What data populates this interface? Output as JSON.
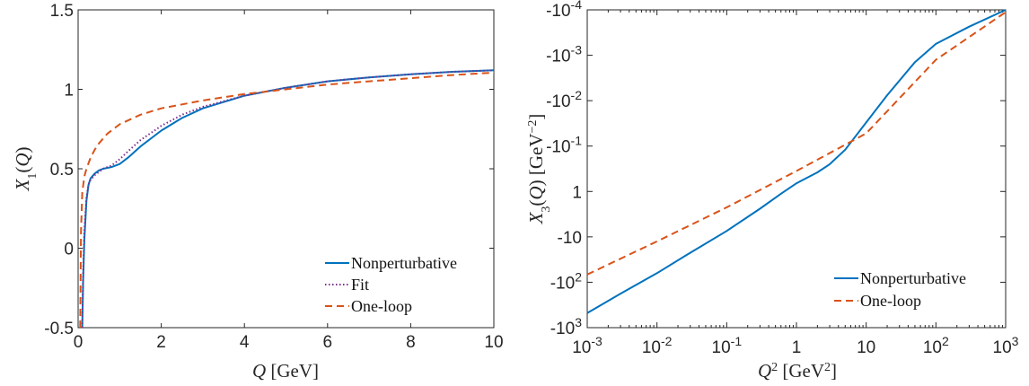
{
  "chart_data": [
    {
      "type": "line",
      "xlabel": "Q [GeV]",
      "ylabel": "X1(Q)",
      "xlim": [
        0,
        10
      ],
      "ylim": [
        -0.5,
        1.5
      ],
      "xticks": [
        0,
        2,
        4,
        6,
        8,
        10
      ],
      "yticks": [
        -0.5,
        0,
        0.5,
        1,
        1.5
      ],
      "xtick_labels": [
        "0",
        "2",
        "4",
        "6",
        "8",
        "10"
      ],
      "ytick_labels": [
        "-0.5",
        "0",
        "0.5",
        "1",
        "1.5"
      ],
      "grid": false,
      "legend_position": "bottom-right",
      "series": [
        {
          "name": "Nonperturbative",
          "color": "#0072BD",
          "style": "solid",
          "x": [
            0.1,
            0.12,
            0.15,
            0.2,
            0.25,
            0.3,
            0.4,
            0.5,
            0.6,
            0.8,
            1.0,
            1.2,
            1.5,
            2.0,
            2.5,
            3.0,
            4.0,
            5.0,
            6.0,
            7.0,
            8.0,
            9.0,
            10.0
          ],
          "y": [
            -0.5,
            -0.2,
            0.05,
            0.3,
            0.4,
            0.44,
            0.47,
            0.49,
            0.5,
            0.51,
            0.53,
            0.57,
            0.64,
            0.74,
            0.82,
            0.88,
            0.96,
            1.01,
            1.05,
            1.075,
            1.095,
            1.11,
            1.12
          ]
        },
        {
          "name": "Fit",
          "color": "#7E2F8E",
          "style": "dotted",
          "x": [
            0.1,
            0.12,
            0.15,
            0.2,
            0.25,
            0.3,
            0.4,
            0.5,
            0.6,
            0.8,
            1.0,
            1.2,
            1.5,
            2.0,
            2.5,
            3.0,
            4.0,
            5.0,
            6.0,
            7.0,
            8.0,
            9.0,
            10.0
          ],
          "y": [
            -0.5,
            -0.15,
            0.1,
            0.32,
            0.4,
            0.43,
            0.46,
            0.48,
            0.5,
            0.52,
            0.56,
            0.61,
            0.68,
            0.77,
            0.84,
            0.89,
            0.96,
            1.01,
            1.05,
            1.075,
            1.095,
            1.11,
            1.12
          ]
        },
        {
          "name": "One-loop",
          "color": "#D95319",
          "style": "dashed",
          "x": [
            0.05,
            0.07,
            0.1,
            0.15,
            0.2,
            0.3,
            0.4,
            0.5,
            0.7,
            1.0,
            1.5,
            2.0,
            3.0,
            4.0,
            5.0,
            6.0,
            7.0,
            8.0,
            9.0,
            10.0
          ],
          "y": [
            -0.5,
            0.1,
            0.35,
            0.45,
            0.5,
            0.57,
            0.62,
            0.66,
            0.72,
            0.78,
            0.84,
            0.88,
            0.93,
            0.97,
            1.0,
            1.03,
            1.05,
            1.07,
            1.09,
            1.105
          ]
        }
      ]
    },
    {
      "type": "line",
      "xlabel": "Q2 [GeV2]",
      "ylabel": "X3(Q) [GeV−2]",
      "xscale": "log",
      "yscale": "symlog",
      "xlim": [
        0.001,
        1000
      ],
      "ylim_exponent_range": [
        -4,
        3
      ],
      "xticks": [
        0.001,
        0.01,
        0.1,
        1,
        10,
        100,
        1000
      ],
      "xtick_labels": [
        {
          "base": "10",
          "exp": "-3"
        },
        {
          "base": "10",
          "exp": "-2"
        },
        {
          "base": "10",
          "exp": "-1"
        },
        {
          "base": "1",
          "exp": ""
        },
        {
          "base": "10",
          "exp": ""
        },
        {
          "base": "10",
          "exp": "2"
        },
        {
          "base": "10",
          "exp": "3"
        }
      ],
      "ytick_labels": [
        {
          "base": "-10",
          "exp": "-4"
        },
        {
          "base": "-10",
          "exp": "-3"
        },
        {
          "base": "-10",
          "exp": "-2"
        },
        {
          "base": "-10",
          "exp": "-1"
        },
        {
          "base": "1",
          "exp": ""
        },
        {
          "base": "-10",
          "exp": ""
        },
        {
          "base": "-10",
          "exp": "2"
        },
        {
          "base": "-10",
          "exp": "3"
        }
      ],
      "grid": false,
      "legend_position": "bottom-right",
      "series": [
        {
          "name": "Nonperturbative",
          "color": "#0072BD",
          "style": "solid",
          "x": [
            0.001,
            0.003,
            0.01,
            0.03,
            0.1,
            0.3,
            0.6,
            1.0,
            2.0,
            3.0,
            5.0,
            10.0,
            20.0,
            50.0,
            100.0,
            300.0,
            1000.0
          ],
          "log10_abs_y": [
            2.68,
            2.25,
            1.8,
            1.35,
            0.87,
            0.38,
            0.05,
            -0.18,
            -0.42,
            -0.6,
            -0.92,
            -1.52,
            -2.12,
            -2.85,
            -3.25,
            -3.63,
            -4.0
          ]
        },
        {
          "name": "One-loop",
          "color": "#D95319",
          "style": "dashed",
          "x": [
            0.001,
            0.01,
            0.1,
            1.0,
            10.0,
            100.0,
            1000.0
          ],
          "log10_abs_y": [
            1.83,
            1.1,
            0.35,
            -0.45,
            -1.28,
            -2.9,
            -3.95
          ]
        }
      ]
    }
  ]
}
